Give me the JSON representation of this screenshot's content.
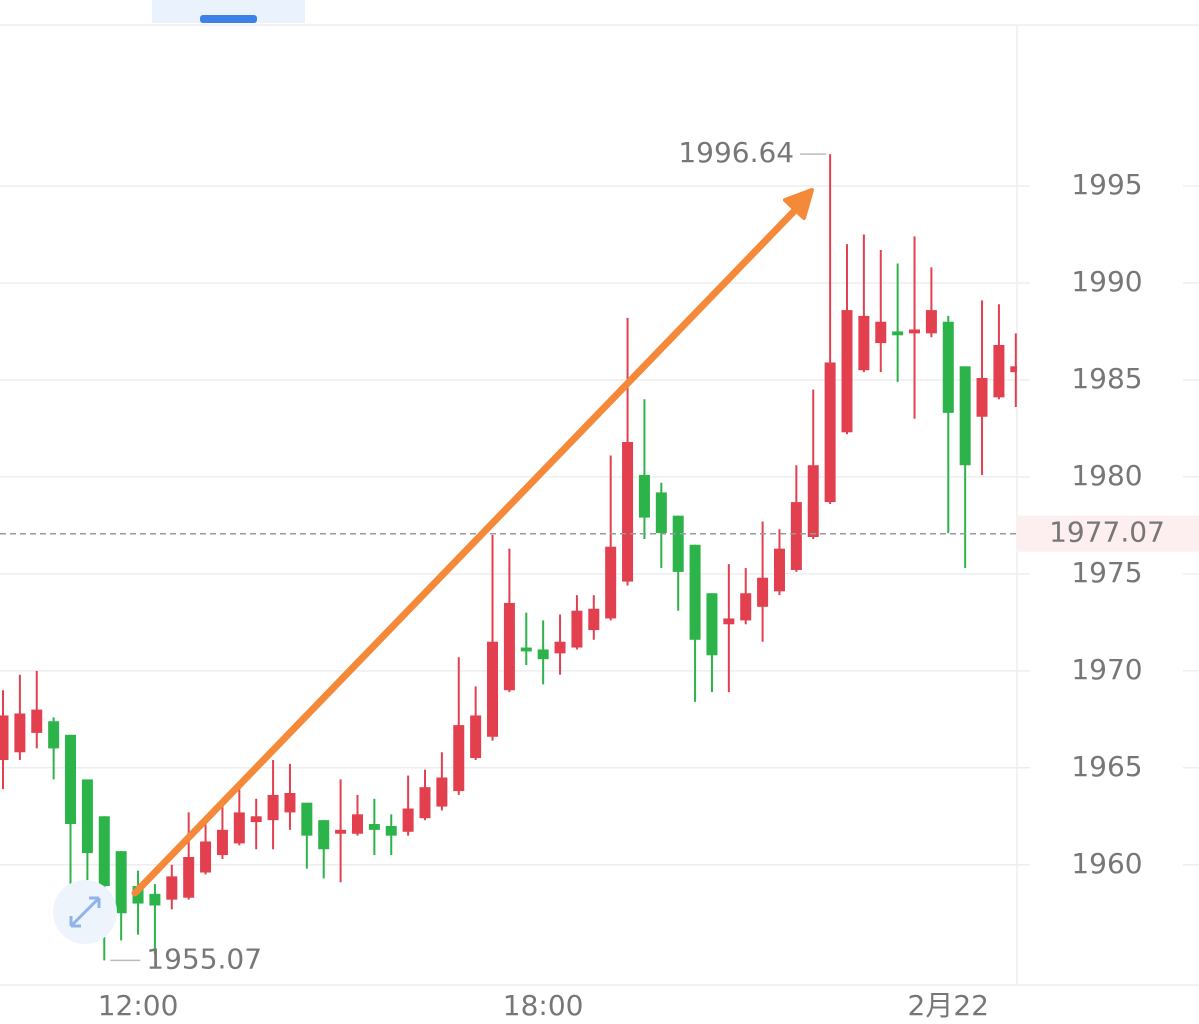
{
  "chart_data": {
    "type": "candlestick",
    "categories": [
      null,
      null,
      null,
      null,
      null,
      null,
      null,
      null,
      "12:00",
      null,
      null,
      null,
      null,
      null,
      null,
      null,
      null,
      null,
      null,
      null,
      null,
      null,
      null,
      null,
      null,
      null,
      null,
      null,
      null,
      null,
      null,
      null,
      "18:00",
      null,
      null,
      null,
      null,
      null,
      null,
      null,
      null,
      null,
      null,
      null,
      null,
      null,
      null,
      null,
      null,
      null,
      null,
      null,
      null,
      null,
      null,
      null,
      "2月22",
      null,
      null,
      null,
      null
    ],
    "open": [
      1965.4,
      1965.8,
      1966.8,
      1967.4,
      1966.7,
      1964.4,
      1962.5,
      1960.7,
      1958.9,
      1958.5,
      1958.2,
      1958.3,
      1959.6,
      1960.5,
      1961.1,
      1962.2,
      1962.3,
      1962.7,
      1963.2,
      1962.3,
      1961.6,
      1961.6,
      1962.1,
      1962.0,
      1961.7,
      1962.4,
      1963.0,
      1963.8,
      1965.5,
      1966.6,
      1969.0,
      1971.2,
      1971.1,
      1970.9,
      1971.2,
      1972.1,
      1972.7,
      1974.6,
      1980.1,
      1979.2,
      1978.0,
      1976.5,
      1974.0,
      1972.4,
      1972.6,
      1973.3,
      1974.1,
      1975.2,
      1976.9,
      1978.7,
      1982.3,
      1985.5,
      1986.9,
      1987.5,
      1987.4,
      1987.4,
      1988.0,
      1985.7,
      1983.1,
      1984.1,
      1985.4
    ],
    "high": [
      1969.0,
      1969.8,
      1970.0,
      1967.6,
      1966.7,
      1964.4,
      1962.5,
      1960.7,
      1959.7,
      1959.0,
      1960.0,
      1962.7,
      1962.3,
      1963.4,
      1963.9,
      1963.4,
      1965.4,
      1965.2,
      1963.2,
      1962.3,
      1964.4,
      1963.6,
      1963.4,
      1962.6,
      1964.6,
      1964.9,
      1965.8,
      1970.7,
      1969.2,
      1977.0,
      1976.3,
      1973.0,
      1972.6,
      1972.9,
      1973.9,
      1973.9,
      1981.1,
      1988.2,
      1984.0,
      1979.7,
      1978.0,
      1976.5,
      1974.0,
      1975.5,
      1975.3,
      1977.7,
      1977.3,
      1980.6,
      1984.5,
      1996.64,
      1992.0,
      1992.5,
      1991.7,
      1991.0,
      1992.4,
      1990.8,
      1988.3,
      1985.7,
      1989.1,
      1988.9,
      1987.4
    ],
    "low": [
      1963.9,
      1965.4,
      1966.0,
      1964.4,
      1958.5,
      1959.2,
      1955.07,
      1956.1,
      1956.4,
      1955.4,
      1957.7,
      1958.2,
      1959.5,
      1960.3,
      1961.0,
      1960.8,
      1960.8,
      1961.8,
      1959.8,
      1959.3,
      1959.1,
      1961.5,
      1960.5,
      1960.5,
      1961.5,
      1962.3,
      1962.8,
      1963.6,
      1965.4,
      1966.4,
      1968.9,
      1970.3,
      1969.3,
      1969.8,
      1971.1,
      1971.6,
      1972.6,
      1974.4,
      1976.8,
      1975.3,
      1973.1,
      1968.4,
      1968.9,
      1968.9,
      1972.4,
      1971.5,
      1973.9,
      1975.1,
      1976.8,
      1978.6,
      1982.2,
      1985.4,
      1985.4,
      1984.9,
      1983.0,
      1987.2,
      1977.1,
      1975.3,
      1980.1,
      1984.0,
      1983.6
    ],
    "close": [
      1967.7,
      1967.8,
      1968.0,
      1966.0,
      1962.1,
      1960.6,
      1958.9,
      1957.5,
      1958.0,
      1957.9,
      1959.4,
      1960.4,
      1961.2,
      1961.8,
      1962.7,
      1962.5,
      1963.6,
      1963.7,
      1961.5,
      1960.8,
      1961.8,
      1962.6,
      1961.8,
      1961.5,
      1962.9,
      1964.0,
      1964.5,
      1967.2,
      1967.7,
      1971.5,
      1973.5,
      1971.0,
      1970.6,
      1971.5,
      1973.1,
      1973.2,
      1976.4,
      1981.8,
      1977.9,
      1977.1,
      1975.1,
      1971.6,
      1970.8,
      1972.7,
      1974.0,
      1974.8,
      1976.3,
      1978.7,
      1980.6,
      1985.9,
      1988.6,
      1988.3,
      1988.0,
      1987.3,
      1987.6,
      1988.6,
      1983.3,
      1980.6,
      1985.1,
      1986.8,
      1985.7
    ],
    "up_color": "#e2404f",
    "down_color": "#2cb34a",
    "ylim": [
      1953.8,
      2003.3
    ],
    "yticks": [
      1960,
      1965,
      1970,
      1975,
      1980,
      1985,
      1990,
      1995
    ],
    "grid": true,
    "last_price": 1977.07
  }
}
